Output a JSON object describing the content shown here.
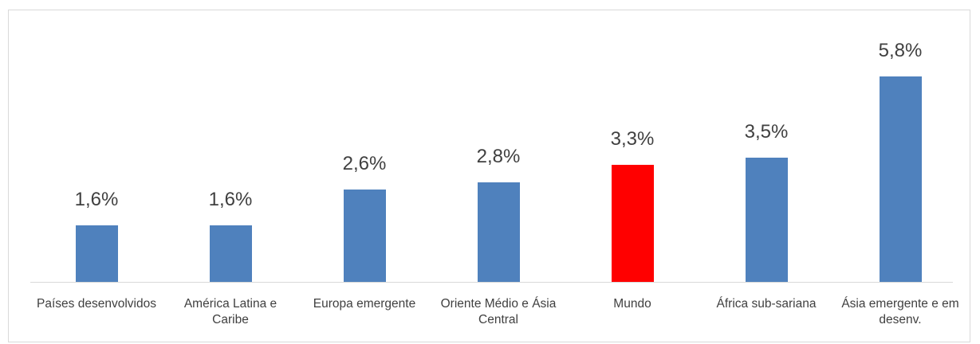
{
  "chart_data": {
    "type": "bar",
    "categories": [
      "Países desenvolvidos",
      "América Latina e Caribe",
      "Europa emergente",
      "Oriente Médio e Ásia Central",
      "Mundo",
      "África sub-sariana",
      "Ásia emergente e em desenv."
    ],
    "values": [
      1.6,
      1.6,
      2.6,
      2.8,
      3.3,
      3.5,
      5.8
    ],
    "value_labels": [
      "1,6%",
      "1,6%",
      "2,6%",
      "2,8%",
      "3,3%",
      "3,5%",
      "5,8%"
    ],
    "colors": [
      "#4f81bd",
      "#4f81bd",
      "#4f81bd",
      "#4f81bd",
      "#ff0000",
      "#4f81bd",
      "#4f81bd"
    ]
  }
}
